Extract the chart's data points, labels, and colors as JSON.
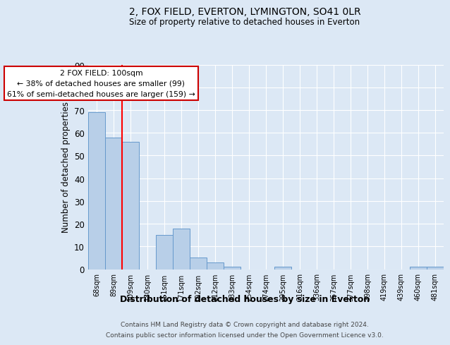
{
  "title1": "2, FOX FIELD, EVERTON, LYMINGTON, SO41 0LR",
  "title2": "Size of property relative to detached houses in Everton",
  "xlabel": "Distribution of detached houses by size in Everton",
  "ylabel": "Number of detached properties",
  "categories": [
    "68sqm",
    "89sqm",
    "109sqm",
    "130sqm",
    "151sqm",
    "171sqm",
    "192sqm",
    "212sqm",
    "233sqm",
    "254sqm",
    "274sqm",
    "295sqm",
    "316sqm",
    "336sqm",
    "357sqm",
    "377sqm",
    "398sqm",
    "419sqm",
    "439sqm",
    "460sqm",
    "481sqm"
  ],
  "values": [
    69,
    58,
    56,
    0,
    15,
    18,
    5,
    3,
    1,
    0,
    0,
    1,
    0,
    0,
    0,
    0,
    0,
    0,
    0,
    1,
    1
  ],
  "bar_color": "#b8cfe8",
  "bar_edge_color": "#6699cc",
  "background_color": "#dce8f5",
  "grid_color": "#ffffff",
  "red_line_x": 1.5,
  "annotation_title": "2 FOX FIELD: 100sqm",
  "annotation_line1": "← 38% of detached houses are smaller (99)",
  "annotation_line2": "61% of semi-detached houses are larger (159) →",
  "annotation_box_color": "#ffffff",
  "annotation_box_edge": "#cc0000",
  "footer1": "Contains HM Land Registry data © Crown copyright and database right 2024.",
  "footer2": "Contains public sector information licensed under the Open Government Licence v3.0.",
  "ylim": [
    0,
    90
  ],
  "yticks": [
    0,
    10,
    20,
    30,
    40,
    50,
    60,
    70,
    80,
    90
  ]
}
